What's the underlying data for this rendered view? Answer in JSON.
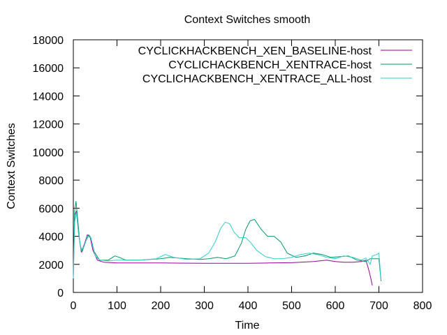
{
  "chart_data": {
    "type": "line",
    "title": "Context Switches smooth",
    "xlabel": "Time",
    "ylabel": "Context Switches",
    "xlim": [
      0,
      800
    ],
    "ylim": [
      0,
      18000
    ],
    "xticks": [
      0,
      100,
      200,
      300,
      400,
      500,
      600,
      700,
      800
    ],
    "yticks": [
      0,
      2000,
      4000,
      6000,
      8000,
      10000,
      12000,
      14000,
      16000,
      18000
    ],
    "grid": false,
    "legend_position": "top-right",
    "series": [
      {
        "name": "CYCLICKHACKBENCH_XEN_BASELINE-host",
        "color": "#990099",
        "points": [
          [
            0,
            1000
          ],
          [
            3,
            5500
          ],
          [
            7,
            5800
          ],
          [
            12,
            4200
          ],
          [
            18,
            2900
          ],
          [
            25,
            3400
          ],
          [
            32,
            4100
          ],
          [
            38,
            4000
          ],
          [
            45,
            3000
          ],
          [
            55,
            2300
          ],
          [
            70,
            2150
          ],
          [
            100,
            2100
          ],
          [
            150,
            2100
          ],
          [
            200,
            2100
          ],
          [
            300,
            2080
          ],
          [
            400,
            2080
          ],
          [
            450,
            2100
          ],
          [
            500,
            2120
          ],
          [
            550,
            2200
          ],
          [
            580,
            2300
          ],
          [
            600,
            2200
          ],
          [
            620,
            2150
          ],
          [
            640,
            2150
          ],
          [
            660,
            2200
          ],
          [
            670,
            2300
          ],
          [
            675,
            1800
          ],
          [
            680,
            1200
          ],
          [
            685,
            500
          ]
        ]
      },
      {
        "name": "CYCLICHACKBENCH_XENTRACE-host",
        "color": "#009966",
        "points": [
          [
            0,
            1500
          ],
          [
            3,
            5800
          ],
          [
            6,
            6500
          ],
          [
            10,
            5200
          ],
          [
            15,
            3500
          ],
          [
            20,
            2900
          ],
          [
            28,
            3600
          ],
          [
            35,
            4100
          ],
          [
            40,
            3900
          ],
          [
            48,
            2900
          ],
          [
            60,
            2300
          ],
          [
            80,
            2300
          ],
          [
            95,
            2600
          ],
          [
            105,
            2500
          ],
          [
            120,
            2300
          ],
          [
            150,
            2300
          ],
          [
            200,
            2400
          ],
          [
            220,
            2500
          ],
          [
            260,
            2400
          ],
          [
            290,
            2350
          ],
          [
            310,
            2400
          ],
          [
            330,
            2500
          ],
          [
            350,
            2400
          ],
          [
            370,
            2600
          ],
          [
            385,
            3500
          ],
          [
            395,
            4500
          ],
          [
            405,
            5100
          ],
          [
            415,
            5200
          ],
          [
            430,
            4500
          ],
          [
            445,
            4000
          ],
          [
            460,
            4000
          ],
          [
            475,
            3600
          ],
          [
            490,
            2800
          ],
          [
            510,
            2500
          ],
          [
            530,
            2600
          ],
          [
            550,
            2800
          ],
          [
            570,
            2700
          ],
          [
            590,
            2500
          ],
          [
            610,
            2550
          ],
          [
            630,
            2600
          ],
          [
            650,
            2300
          ],
          [
            670,
            2200
          ],
          [
            680,
            2400
          ],
          [
            690,
            2400
          ],
          [
            700,
            2400
          ],
          [
            705,
            800
          ]
        ]
      },
      {
        "name": "CYCLICHACKBENCH_XENTRACE_ALL-host",
        "color": "#33cccc",
        "points": [
          [
            0,
            1000
          ],
          [
            3,
            5000
          ],
          [
            7,
            5700
          ],
          [
            12,
            4200
          ],
          [
            18,
            3000
          ],
          [
            25,
            3300
          ],
          [
            32,
            4000
          ],
          [
            40,
            3900
          ],
          [
            50,
            2600
          ],
          [
            60,
            2300
          ],
          [
            80,
            2250
          ],
          [
            100,
            2300
          ],
          [
            150,
            2300
          ],
          [
            190,
            2400
          ],
          [
            210,
            2700
          ],
          [
            230,
            2500
          ],
          [
            260,
            2350
          ],
          [
            290,
            2400
          ],
          [
            310,
            2800
          ],
          [
            325,
            3600
          ],
          [
            338,
            4600
          ],
          [
            348,
            5000
          ],
          [
            358,
            4900
          ],
          [
            368,
            4300
          ],
          [
            380,
            3900
          ],
          [
            395,
            3900
          ],
          [
            405,
            3600
          ],
          [
            420,
            3000
          ],
          [
            440,
            2550
          ],
          [
            460,
            2400
          ],
          [
            480,
            2400
          ],
          [
            500,
            2500
          ],
          [
            520,
            2700
          ],
          [
            540,
            2800
          ],
          [
            560,
            2700
          ],
          [
            580,
            2500
          ],
          [
            600,
            2400
          ],
          [
            620,
            2600
          ],
          [
            640,
            2500
          ],
          [
            660,
            2300
          ],
          [
            670,
            2450
          ],
          [
            680,
            2000
          ],
          [
            685,
            2600
          ],
          [
            695,
            2700
          ],
          [
            700,
            2800
          ],
          [
            705,
            900
          ]
        ]
      }
    ]
  }
}
